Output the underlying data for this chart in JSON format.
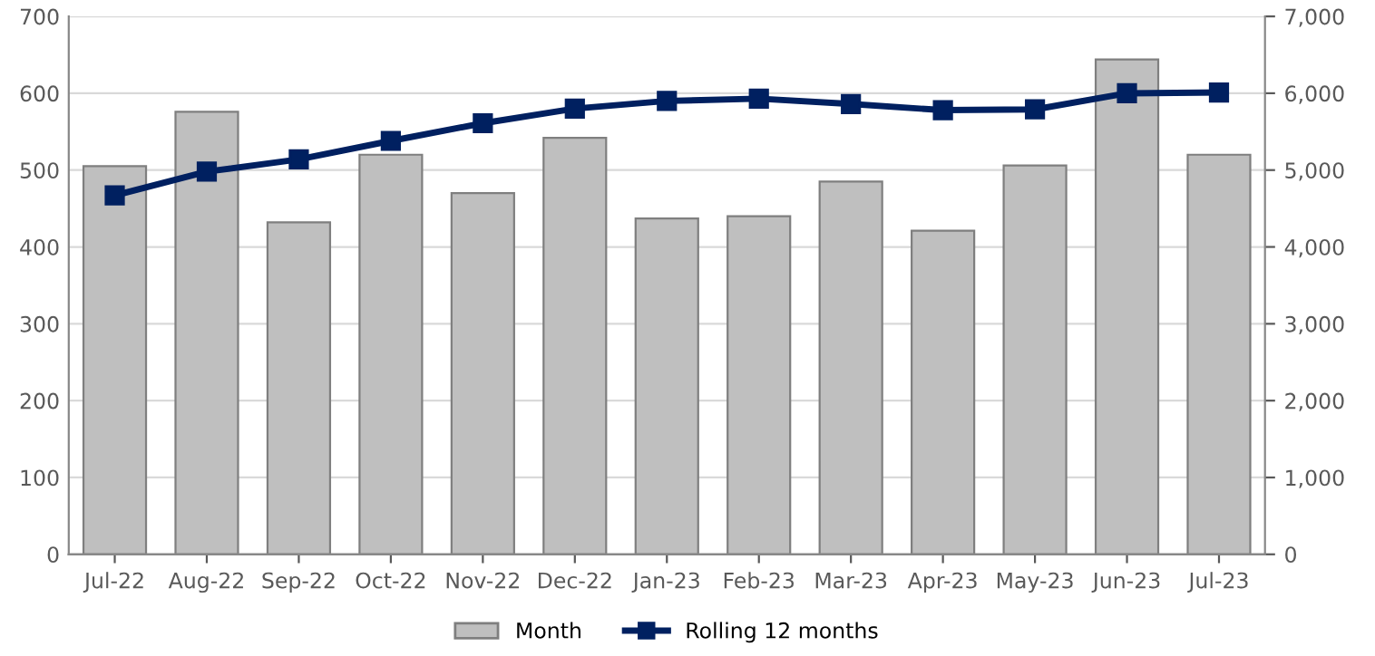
{
  "chart_data": {
    "type": "bar",
    "categories": [
      "Jul-22",
      "Aug-22",
      "Sep-22",
      "Oct-22",
      "Nov-22",
      "Dec-22",
      "Jan-23",
      "Feb-23",
      "Mar-23",
      "Apr-23",
      "May-23",
      "Jun-23",
      "Jul-23"
    ],
    "series": [
      {
        "name": "Month",
        "color": "#bfbfbf",
        "values": [
          505,
          576,
          432,
          520,
          470,
          542,
          437,
          440,
          485,
          421,
          506,
          644,
          520
        ]
      },
      {
        "name": "Rolling 12 months",
        "type": "line",
        "axis": "y2",
        "color": "#002060",
        "marker": "square",
        "line_style": "solid",
        "values": [
          4670,
          4980,
          5140,
          5380,
          5610,
          5800,
          5900,
          5930,
          5860,
          5780,
          5790,
          6000,
          6010
        ]
      }
    ],
    "ylim": [
      0,
      700
    ],
    "yticks": [
      0,
      100,
      200,
      300,
      400,
      500,
      600,
      700
    ],
    "y2lim": [
      0,
      7000
    ],
    "y2ticks": [
      {
        "value": 0,
        "label": "0"
      },
      {
        "value": 1000,
        "label": "1,000"
      },
      {
        "value": 2000,
        "label": "2,000"
      },
      {
        "value": 3000,
        "label": "3,000"
      },
      {
        "value": 4000,
        "label": "4,000"
      },
      {
        "value": 5000,
        "label": "5,000"
      },
      {
        "value": 6000,
        "label": "6,000"
      },
      {
        "value": 7000,
        "label": "7,000"
      }
    ],
    "grid": "y",
    "legend": "bottom"
  }
}
